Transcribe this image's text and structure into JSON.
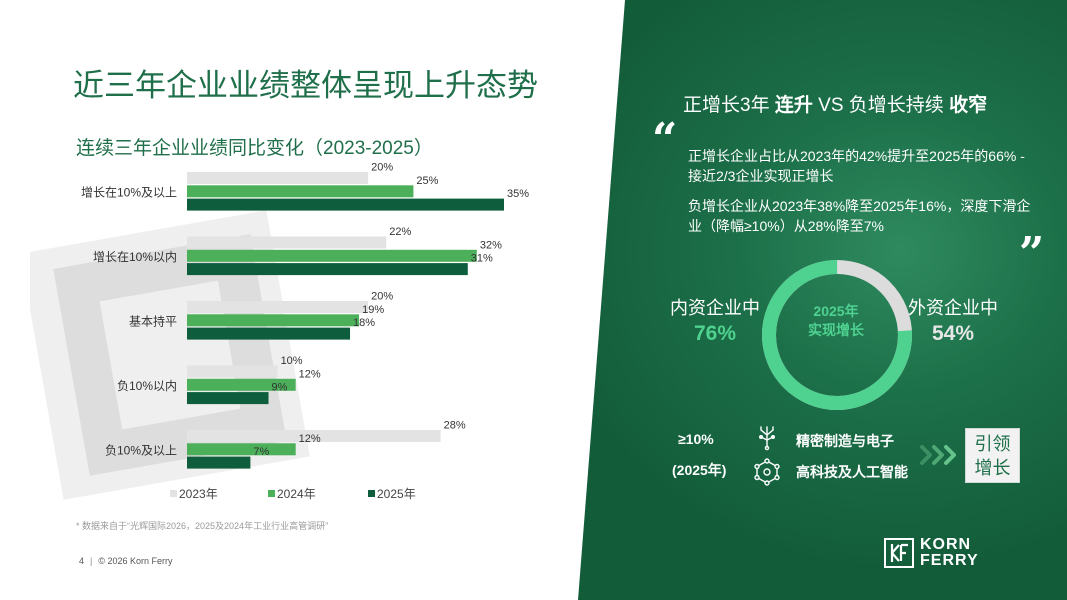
{
  "title": "近三年企业业绩整体呈现上升态势",
  "colors": {
    "c2023": "#e3e3e3",
    "c2024": "#4caf5a",
    "c2025": "#0e5e3d",
    "brand": "#1f6f4a"
  },
  "chart_data": {
    "type": "bar",
    "orientation": "horizontal",
    "title": "连续三年企业业绩同比变化（2023-2025）",
    "categories": [
      "增长在10%及以上",
      "增长在10%以内",
      "基本持平",
      "负10%以内",
      "负10%及以上"
    ],
    "series": [
      {
        "name": "2023年",
        "values": [
          20,
          22,
          20,
          10,
          28
        ],
        "labels": [
          "20%",
          "22%",
          "20%",
          "10%",
          "28%"
        ]
      },
      {
        "name": "2024年",
        "values": [
          25,
          32,
          19,
          12,
          12
        ],
        "labels": [
          "25%",
          "32%",
          "19%",
          "12%",
          "12%"
        ]
      },
      {
        "name": "2025年",
        "values": [
          35,
          31,
          18,
          9,
          7
        ],
        "labels": [
          "35%",
          "31%",
          "18%",
          "9%",
          "7%"
        ]
      }
    ],
    "xlim": [
      0,
      35
    ],
    "grid": false,
    "legend": "bottom"
  },
  "footnote": "* 数据来自于“光辉国际2026，2025及2024年工业行业高管调研”",
  "footer": {
    "page": "4",
    "copyright": "© 2026 Korn Ferry"
  },
  "right": {
    "heading_a": "正增长3年",
    "heading_b": "连升",
    "heading_c": "VS",
    "heading_d": "负增长持续",
    "heading_e": "收窄",
    "quote_open": "“",
    "quote_close": "”",
    "bullet1": "正增长企业占比从2023年的42%提升至2025年的66% - 接近2/3企业实现正增长",
    "bullet2": "负增长企业从2023年38%降至2025年16%，深度下滑企业（降幅≥10%）从28%降至7%",
    "donut": {
      "center_line1": "2025年",
      "center_line2": "实现增长",
      "domestic_label": "内资企业中",
      "domestic_value": "76%",
      "domestic_share": 0.76,
      "foreign_label": "外资企业中",
      "foreign_value": "54%",
      "foreign_share": 0.54
    },
    "threshold": "≥10%",
    "threshold_year": "(2025年)",
    "industry1": "精密制造与电子",
    "industry2": "高科技及人工智能",
    "lead": "引领增长",
    "icons": [
      "chip-icon",
      "network-icon",
      "chevron-right-icon"
    ]
  },
  "logo": {
    "line1": "KORN",
    "line2": "FERRY",
    "icon": "kf-logo-icon"
  }
}
